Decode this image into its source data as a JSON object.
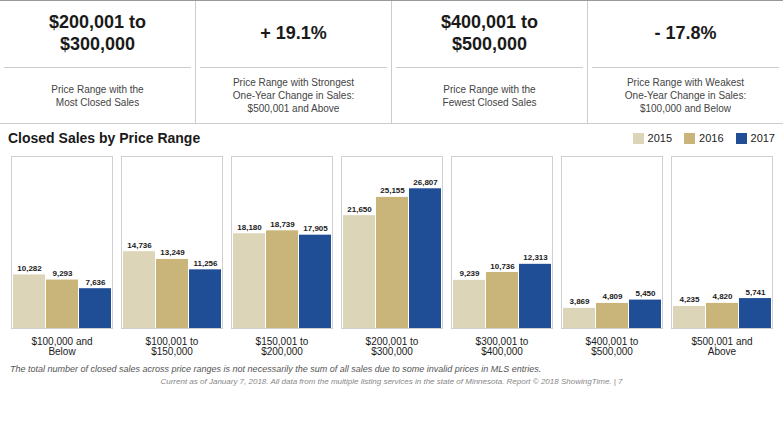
{
  "chart_data": {
    "type": "bar",
    "title": "Closed Sales by Price Range",
    "categories": [
      "$100,000 and\nBelow",
      "$100,001 to\n$150,000",
      "$150,001 to\n$200,000",
      "$200,001 to\n$300,000",
      "$300,001 to\n$400,000",
      "$400,001 to\n$500,000",
      "$500,001 and\nAbove"
    ],
    "series": [
      {
        "name": "2015",
        "color": "#ddd5b8",
        "values": [
          10282,
          14736,
          18180,
          21650,
          9239,
          3869,
          4235
        ],
        "value_labels": [
          "10,282",
          "14,736",
          "18,180",
          "21,650",
          "9,239",
          "3,869",
          "4,235"
        ]
      },
      {
        "name": "2016",
        "color": "#c9b47a",
        "values": [
          9293,
          13249,
          18739,
          25155,
          10736,
          4809,
          4820
        ],
        "value_labels": [
          "9,293",
          "13,249",
          "18,739",
          "25,155",
          "10,736",
          "4,809",
          "4,820"
        ]
      },
      {
        "name": "2017",
        "color": "#1f4e96",
        "values": [
          7636,
          11256,
          17905,
          26807,
          12313,
          5450,
          5741
        ],
        "value_labels": [
          "7,636",
          "11,256",
          "17,905",
          "26,807",
          "12,313",
          "5,450",
          "5,741"
        ]
      }
    ],
    "ylim": [
      0,
      33000
    ],
    "grid": false,
    "legend": "upper right",
    "data_labels": true,
    "tick_labels": "x",
    "annotations": [
      "$200,001 to\n$300,000",
      "Price Range with the\nMost Closed Sales",
      "+ 19.1%",
      "Price Range with Strongest\nOne-Year Change in Sales:\n$500,001 and Above",
      "$400,001 to\n$500,000",
      "Price Range with the\nFewest Closed Sales",
      "- 17.8%",
      "Price Range with Weakest\nOne-Year Change in Sales:\n$100,000 and Below",
      "The total number of closed sales across price ranges is not necessarily the sum of all sales due to some invalid prices in MLS entries.",
      "Current as of January 7, 2018. All data from the multiple listing services in the state of Minnesota. Report © 2018 ShowingTime.  |  7"
    ]
  }
}
